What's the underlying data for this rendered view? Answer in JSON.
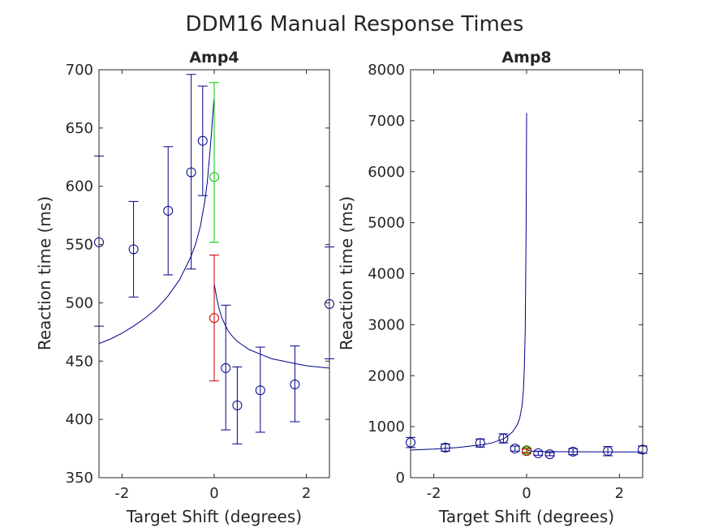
{
  "figure": {
    "title": "DDM16 Manual Response Times"
  },
  "chart_data": [
    {
      "type": "scatter",
      "title": "Amp4",
      "xlabel": "Target Shift (degrees)",
      "ylabel": "Reaction time (ms)",
      "xlim": [
        -2.5,
        2.5
      ],
      "ylim": [
        350,
        700
      ],
      "xticks": [
        -2,
        0,
        2
      ],
      "xtick_labels": [
        "-2",
        "0",
        "2"
      ],
      "yticks": [
        350,
        400,
        450,
        500,
        550,
        600,
        650,
        700
      ],
      "ytick_labels": [
        "350",
        "400",
        "450",
        "500",
        "550",
        "600",
        "650",
        "700"
      ],
      "grid": false,
      "legend": "none",
      "series": [
        {
          "color": "#00008b",
          "marker": "circle",
          "points": [
            {
              "x": -2.5,
              "y": 552,
              "lo": 480,
              "hi": 626
            },
            {
              "x": -1.75,
              "y": 546,
              "lo": 505,
              "hi": 587
            },
            {
              "x": -1.0,
              "y": 579,
              "lo": 524,
              "hi": 634
            },
            {
              "x": -0.5,
              "y": 612,
              "lo": 529,
              "hi": 696
            },
            {
              "x": -0.25,
              "y": 639,
              "lo": 592,
              "hi": 686
            },
            {
              "x": 0.25,
              "y": 444,
              "lo": 391,
              "hi": 498
            },
            {
              "x": 0.5,
              "y": 412,
              "lo": 379,
              "hi": 445
            },
            {
              "x": 1.0,
              "y": 425,
              "lo": 389,
              "hi": 462
            },
            {
              "x": 1.75,
              "y": 430,
              "lo": 398,
              "hi": 463
            },
            {
              "x": 2.5,
              "y": 499,
              "lo": 452,
              "hi": 548
            }
          ]
        },
        {
          "color": "#00c800",
          "marker": "circle",
          "points": [
            {
              "x": 0,
              "y": 608,
              "lo": 552,
              "hi": 689
            }
          ]
        },
        {
          "color": "#c80000",
          "marker": "circle",
          "points": [
            {
              "x": 0,
              "y": 487,
              "lo": 433,
              "hi": 541
            }
          ]
        }
      ],
      "fit_curve": {
        "color": "#00008b",
        "left": {
          "x": [
            -2.5,
            -2.25,
            -2.0,
            -1.75,
            -1.5,
            -1.25,
            -1.0,
            -0.75,
            -0.5,
            -0.4,
            -0.3,
            -0.2,
            -0.15,
            -0.1,
            -0.05,
            -0.02,
            0
          ],
          "y": [
            465,
            469,
            474,
            480,
            487,
            495,
            506,
            520,
            540,
            551,
            566,
            588,
            604,
            626,
            651,
            668,
            676
          ]
        },
        "right": {
          "x": [
            0,
            0.02,
            0.05,
            0.1,
            0.15,
            0.2,
            0.3,
            0.4,
            0.5,
            0.75,
            1.0,
            1.25,
            1.5,
            1.75,
            2.0,
            2.25,
            2.5
          ],
          "y": [
            516,
            512,
            505,
            496,
            489,
            484,
            476,
            471,
            467,
            460,
            456,
            452,
            450,
            448,
            446,
            445,
            444
          ]
        }
      }
    },
    {
      "type": "scatter",
      "title": "Amp8",
      "xlabel": "Target Shift (degrees)",
      "ylabel": "Reaction time (ms)",
      "xlim": [
        -2.5,
        2.5
      ],
      "ylim": [
        0,
        8000
      ],
      "xticks": [
        -2,
        0,
        2
      ],
      "xtick_labels": [
        "-2",
        "0",
        "2"
      ],
      "yticks": [
        0,
        1000,
        2000,
        3000,
        4000,
        5000,
        6000,
        7000,
        8000
      ],
      "ytick_labels": [
        "0",
        "1000",
        "2000",
        "3000",
        "4000",
        "5000",
        "6000",
        "7000",
        "8000"
      ],
      "grid": false,
      "legend": "none",
      "series": [
        {
          "color": "#00008b",
          "marker": "circle",
          "points": [
            {
              "x": -2.5,
              "y": 690,
              "lo": 590,
              "hi": 790
            },
            {
              "x": -1.75,
              "y": 590,
              "lo": 520,
              "hi": 660
            },
            {
              "x": -1.0,
              "y": 680,
              "lo": 600,
              "hi": 760
            },
            {
              "x": -0.5,
              "y": 770,
              "lo": 680,
              "hi": 860
            },
            {
              "x": -0.25,
              "y": 570,
              "lo": 520,
              "hi": 620
            },
            {
              "x": 0.25,
              "y": 480,
              "lo": 440,
              "hi": 520
            },
            {
              "x": 0.5,
              "y": 460,
              "lo": 430,
              "hi": 490
            },
            {
              "x": 1.0,
              "y": 510,
              "lo": 450,
              "hi": 570
            },
            {
              "x": 1.75,
              "y": 520,
              "lo": 430,
              "hi": 610
            },
            {
              "x": 2.5,
              "y": 550,
              "lo": 480,
              "hi": 620
            }
          ]
        },
        {
          "color": "#00c800",
          "marker": "circle",
          "points": [
            {
              "x": 0,
              "y": 540,
              "lo": 500,
              "hi": 580
            }
          ]
        },
        {
          "color": "#c80000",
          "marker": "circle",
          "points": [
            {
              "x": 0,
              "y": 520,
              "lo": 480,
              "hi": 560
            }
          ]
        }
      ],
      "fit_curve": {
        "color": "#00008b",
        "left": {
          "x": [
            -2.5,
            -2.0,
            -1.5,
            -1.0,
            -0.75,
            -0.5,
            -0.4,
            -0.3,
            -0.2,
            -0.15,
            -0.1,
            -0.07,
            -0.05,
            -0.03,
            -0.02,
            -0.01,
            0
          ],
          "y": [
            540,
            560,
            590,
            640,
            680,
            760,
            820,
            900,
            1040,
            1160,
            1400,
            1700,
            2100,
            2900,
            4000,
            4900,
            7150
          ]
        },
        "right": {
          "x": [
            0,
            0.02,
            0.05,
            0.1,
            0.2,
            0.3,
            0.5,
            1.0,
            1.5,
            2.0,
            2.5
          ],
          "y": [
            560,
            540,
            530,
            520,
            515,
            512,
            510,
            508,
            507,
            506,
            506
          ]
        }
      }
    }
  ]
}
